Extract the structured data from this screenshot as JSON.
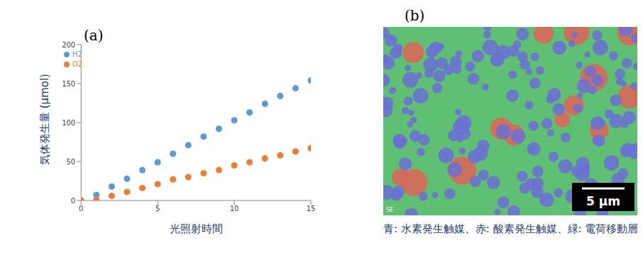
{
  "chart_data": {
    "type": "scatter",
    "title": "(a)",
    "x_label": "光照射時間",
    "y_label": "気体発生量 (μmol)",
    "x": [
      0,
      1,
      2,
      3,
      4,
      5,
      6,
      7,
      8,
      9,
      10,
      11,
      12,
      13,
      14,
      15
    ],
    "series": [
      {
        "name": "H2",
        "color": "#5b9bd5",
        "marker": "circle",
        "values": [
          0,
          7,
          18,
          28,
          39,
          49,
          60,
          71,
          82,
          92,
          103,
          113,
          124,
          134,
          144,
          154
        ]
      },
      {
        "name": "O2",
        "color": "#ed7d31",
        "marker": "circle",
        "values": [
          0,
          1,
          6,
          11,
          16,
          21,
          27,
          30,
          35,
          39,
          45,
          49,
          54,
          58,
          63,
          67
        ]
      }
    ],
    "xlim": [
      0,
      15
    ],
    "xticks": [
      0,
      5,
      10,
      15
    ],
    "ylim": [
      0,
      200
    ],
    "yticks": [
      0,
      50,
      100,
      150,
      200
    ],
    "grid": false,
    "legend": "top-left"
  },
  "image_panel": {
    "label": "(b)",
    "detector": "SE",
    "scale_bar": "5 μm",
    "caption": "青: 水素発生触媒、赤: 酸素発生触媒、緑: 電荷移動層"
  }
}
